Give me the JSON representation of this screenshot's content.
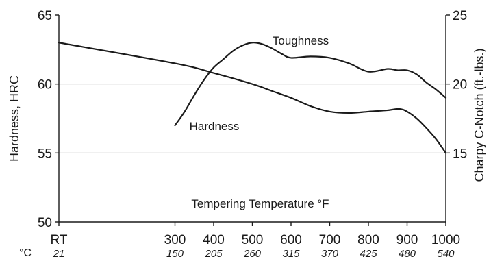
{
  "chart_data": {
    "type": "line",
    "xlabel": "Tempering Temperature °F",
    "ylabel_left": "Hardness, HRC",
    "ylabel_right": "Charpy C-Notch (ft.-lbs.)",
    "x_ticks": [
      {
        "value": 0,
        "label": "RT",
        "celsius": "21"
      },
      {
        "value": 300,
        "label": "300",
        "celsius": "150"
      },
      {
        "value": 400,
        "label": "400",
        "celsius": "205"
      },
      {
        "value": 500,
        "label": "500",
        "celsius": "260"
      },
      {
        "value": 600,
        "label": "600",
        "celsius": "315"
      },
      {
        "value": 700,
        "label": "700",
        "celsius": "370"
      },
      {
        "value": 800,
        "label": "800",
        "celsius": "425"
      },
      {
        "value": 900,
        "label": "900",
        "celsius": "480"
      },
      {
        "value": 1000,
        "label": "1000",
        "celsius": "540"
      }
    ],
    "celsius_unit": "°C",
    "xlim": [
      0,
      1000
    ],
    "ylim_left": [
      50,
      65
    ],
    "ylim_right": [
      10,
      25
    ],
    "left_ticks": [
      "50",
      "55",
      "60",
      "65"
    ],
    "right_ticks": [
      "15",
      "20",
      "25"
    ],
    "grid": "horizontal at 55 and 60 HRC",
    "series": [
      {
        "name": "Hardness",
        "axis": "left",
        "x": [
          0,
          300,
          400,
          500,
          550,
          600,
          650,
          700,
          750,
          800,
          850,
          880,
          900,
          925,
          950,
          975,
          1000
        ],
        "y": [
          63.0,
          61.5,
          60.8,
          60.0,
          59.5,
          59.0,
          58.4,
          58.0,
          57.9,
          58.0,
          58.1,
          58.2,
          58.0,
          57.5,
          56.8,
          56.0,
          55.0
        ]
      },
      {
        "name": "Toughness",
        "axis": "right",
        "x": [
          300,
          325,
          350,
          375,
          400,
          425,
          450,
          475,
          500,
          525,
          550,
          575,
          600,
          650,
          700,
          750,
          800,
          850,
          875,
          900,
          925,
          950,
          975,
          1000
        ],
        "y": [
          17.0,
          18.0,
          19.2,
          20.3,
          21.2,
          21.8,
          22.4,
          22.8,
          23.0,
          22.9,
          22.6,
          22.2,
          21.9,
          22.0,
          21.9,
          21.5,
          20.9,
          21.1,
          21.0,
          21.0,
          20.7,
          20.1,
          19.6,
          19.0
        ]
      }
    ]
  }
}
